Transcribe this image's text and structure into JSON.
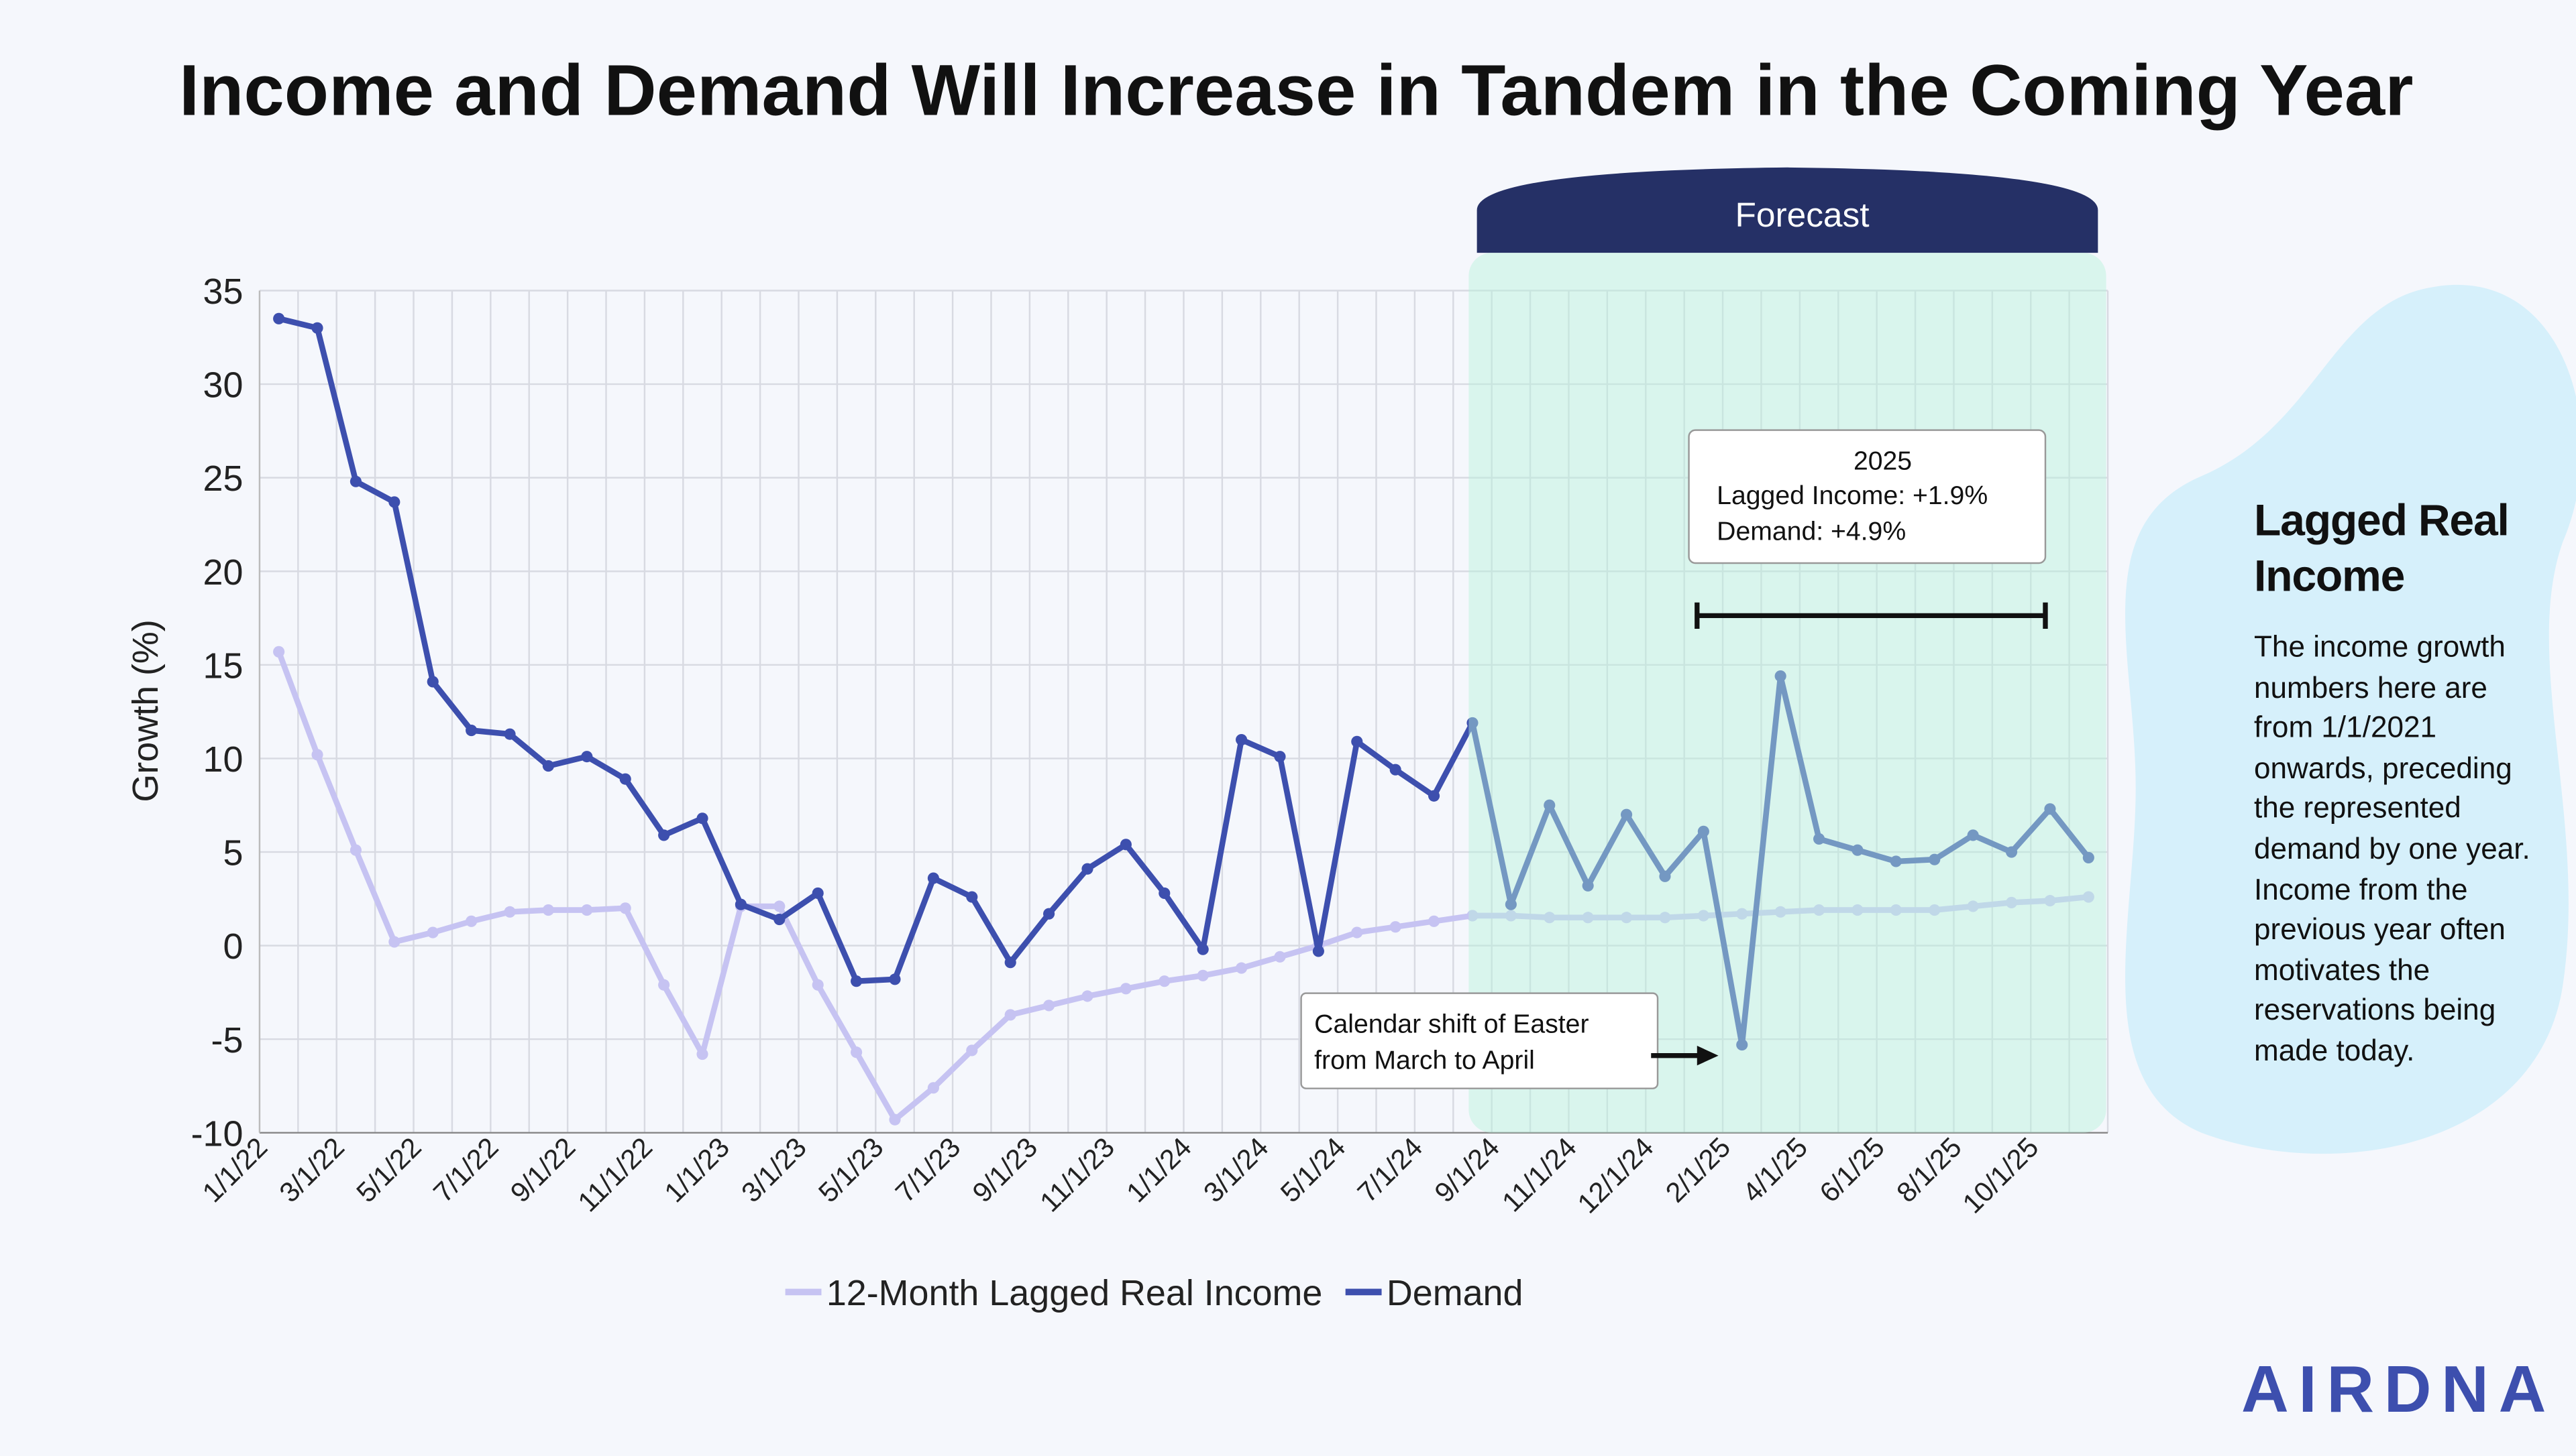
{
  "chart_data": {
    "type": "line",
    "title": "Income and Demand Will Increase in Tandem in the Coming Year",
    "y_label": "Growth (%)",
    "categories": [
      "1/1/22",
      null,
      "3/1/22",
      null,
      "5/1/22",
      null,
      "7/1/22",
      null,
      "9/1/22",
      null,
      "11/1/22",
      null,
      "1/1/23",
      null,
      "3/1/23",
      null,
      "5/1/23",
      null,
      "7/1/23",
      null,
      "9/1/23",
      null,
      "11/1/23",
      null,
      "1/1/24",
      null,
      "3/1/24",
      null,
      "5/1/24",
      null,
      "7/1/24",
      null,
      "9/1/24",
      null,
      "11/1/24",
      null,
      "12/1/24",
      null,
      "2/1/25",
      null,
      "4/1/25",
      null,
      "6/1/25",
      null,
      "8/1/25",
      null,
      "10/1/25",
      null
    ],
    "series": [
      {
        "name": "12-Month Lagged Real Income",
        "color": "#c6c3f2",
        "values": [
          15.7,
          10.2,
          5.1,
          0.2,
          0.7,
          1.3,
          1.8,
          1.9,
          1.9,
          2.0,
          -2.1,
          -5.8,
          2.1,
          2.1,
          -2.1,
          -5.7,
          -9.3,
          -7.6,
          -5.6,
          -3.7,
          -3.2,
          -2.7,
          -2.3,
          -1.9,
          -1.6,
          -1.2,
          -0.6,
          0,
          0.7,
          1.0,
          1.3,
          1.6,
          1.6,
          1.5,
          1.5,
          1.5,
          1.5,
          1.6,
          1.7,
          1.8,
          1.9,
          1.9,
          1.9,
          1.9,
          2.1,
          2.3,
          2.4,
          2.6
        ]
      },
      {
        "name": "Demand",
        "color": "#3d4fae",
        "values": [
          33.5,
          33,
          24.8,
          23.7,
          14.1,
          11.5,
          11.3,
          9.6,
          10.1,
          8.9,
          5.9,
          6.8,
          2.2,
          1.4,
          2.8,
          -1.9,
          -1.8,
          3.6,
          2.6,
          -0.9,
          1.7,
          4.1,
          5.4,
          2.8,
          -0.2,
          11,
          10.1,
          -0.3,
          10.9,
          9.4,
          8,
          11.9,
          2.2,
          7.5,
          3.2,
          7,
          3.7,
          6.1,
          -5.3,
          14.4,
          5.7,
          5.1,
          4.5,
          4.6,
          5.9,
          5,
          7.3,
          4.7
        ]
      }
    ],
    "ylim": [
      -10,
      35
    ],
    "yticks": [
      -10,
      -5,
      0,
      5,
      10,
      15,
      20,
      25,
      30,
      35
    ],
    "grid": true,
    "forecast_label": "Forecast",
    "forecast_box": [
      "2025",
      "Lagged Income: +1.9%",
      "Demand: +4.9%"
    ],
    "note": [
      "Calendar shift of Easter",
      "from March to April"
    ]
  },
  "sidebar": {
    "title": "Lagged Real Income",
    "text": "The income growth numbers here are from 1/1/2021 onwards, preceding the represented demand by one year. Income from the previous year often motivates the reservations being made today."
  },
  "logo": "AIRDNA"
}
